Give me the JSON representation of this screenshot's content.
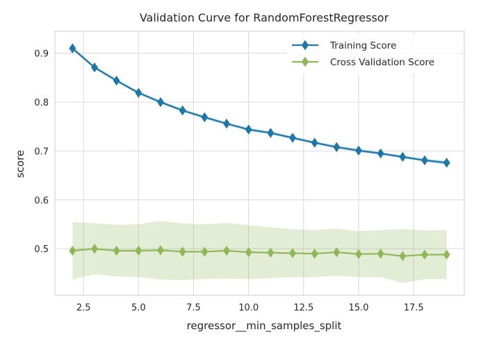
{
  "chart_data": {
    "type": "line",
    "title": "Validation Curve for RandomForestRegressor",
    "xlabel": "regressor__min_samples_split",
    "ylabel": "score",
    "xlim": [
      1.2,
      19.8
    ],
    "ylim": [
      0.405,
      0.945
    ],
    "xticks": [
      2.5,
      5.0,
      7.5,
      10.0,
      12.5,
      15.0,
      17.5
    ],
    "xtick_labels": [
      "2.5",
      "5.0",
      "7.5",
      "10.0",
      "12.5",
      "15.0",
      "17.5"
    ],
    "yticks": [
      0.5,
      0.6,
      0.7,
      0.8,
      0.9
    ],
    "ytick_labels": [
      "0.5",
      "0.6",
      "0.7",
      "0.8",
      "0.9"
    ],
    "grid": true,
    "legend_position": "top-right",
    "x": [
      2,
      3,
      4,
      5,
      6,
      7,
      8,
      9,
      10,
      11,
      12,
      13,
      14,
      15,
      16,
      17,
      18,
      19
    ],
    "series": [
      {
        "name": "Training Score",
        "color": "#1f77a8",
        "marker": "diamond",
        "values": [
          0.91,
          0.871,
          0.844,
          0.819,
          0.8,
          0.783,
          0.769,
          0.756,
          0.744,
          0.737,
          0.727,
          0.717,
          0.708,
          0.701,
          0.695,
          0.688,
          0.681,
          0.676
        ],
        "band_low": [
          0.907,
          0.868,
          0.841,
          0.816,
          0.797,
          0.78,
          0.766,
          0.753,
          0.741,
          0.734,
          0.724,
          0.714,
          0.705,
          0.698,
          0.692,
          0.685,
          0.678,
          0.672
        ],
        "band_high": [
          0.913,
          0.874,
          0.847,
          0.822,
          0.803,
          0.786,
          0.772,
          0.759,
          0.747,
          0.74,
          0.73,
          0.72,
          0.711,
          0.704,
          0.698,
          0.691,
          0.684,
          0.68
        ]
      },
      {
        "name": "Cross Validation Score",
        "color": "#8fb75a",
        "marker": "diamond",
        "values": [
          0.496,
          0.5,
          0.496,
          0.496,
          0.497,
          0.494,
          0.494,
          0.496,
          0.493,
          0.492,
          0.491,
          0.49,
          0.493,
          0.489,
          0.49,
          0.485,
          0.488,
          0.488
        ],
        "band_low": [
          0.437,
          0.448,
          0.443,
          0.442,
          0.437,
          0.436,
          0.438,
          0.439,
          0.438,
          0.44,
          0.442,
          0.442,
          0.445,
          0.442,
          0.442,
          0.43,
          0.438,
          0.438
        ],
        "band_high": [
          0.555,
          0.552,
          0.549,
          0.55,
          0.557,
          0.552,
          0.55,
          0.553,
          0.548,
          0.544,
          0.54,
          0.538,
          0.541,
          0.536,
          0.538,
          0.54,
          0.538,
          0.538
        ]
      }
    ]
  }
}
